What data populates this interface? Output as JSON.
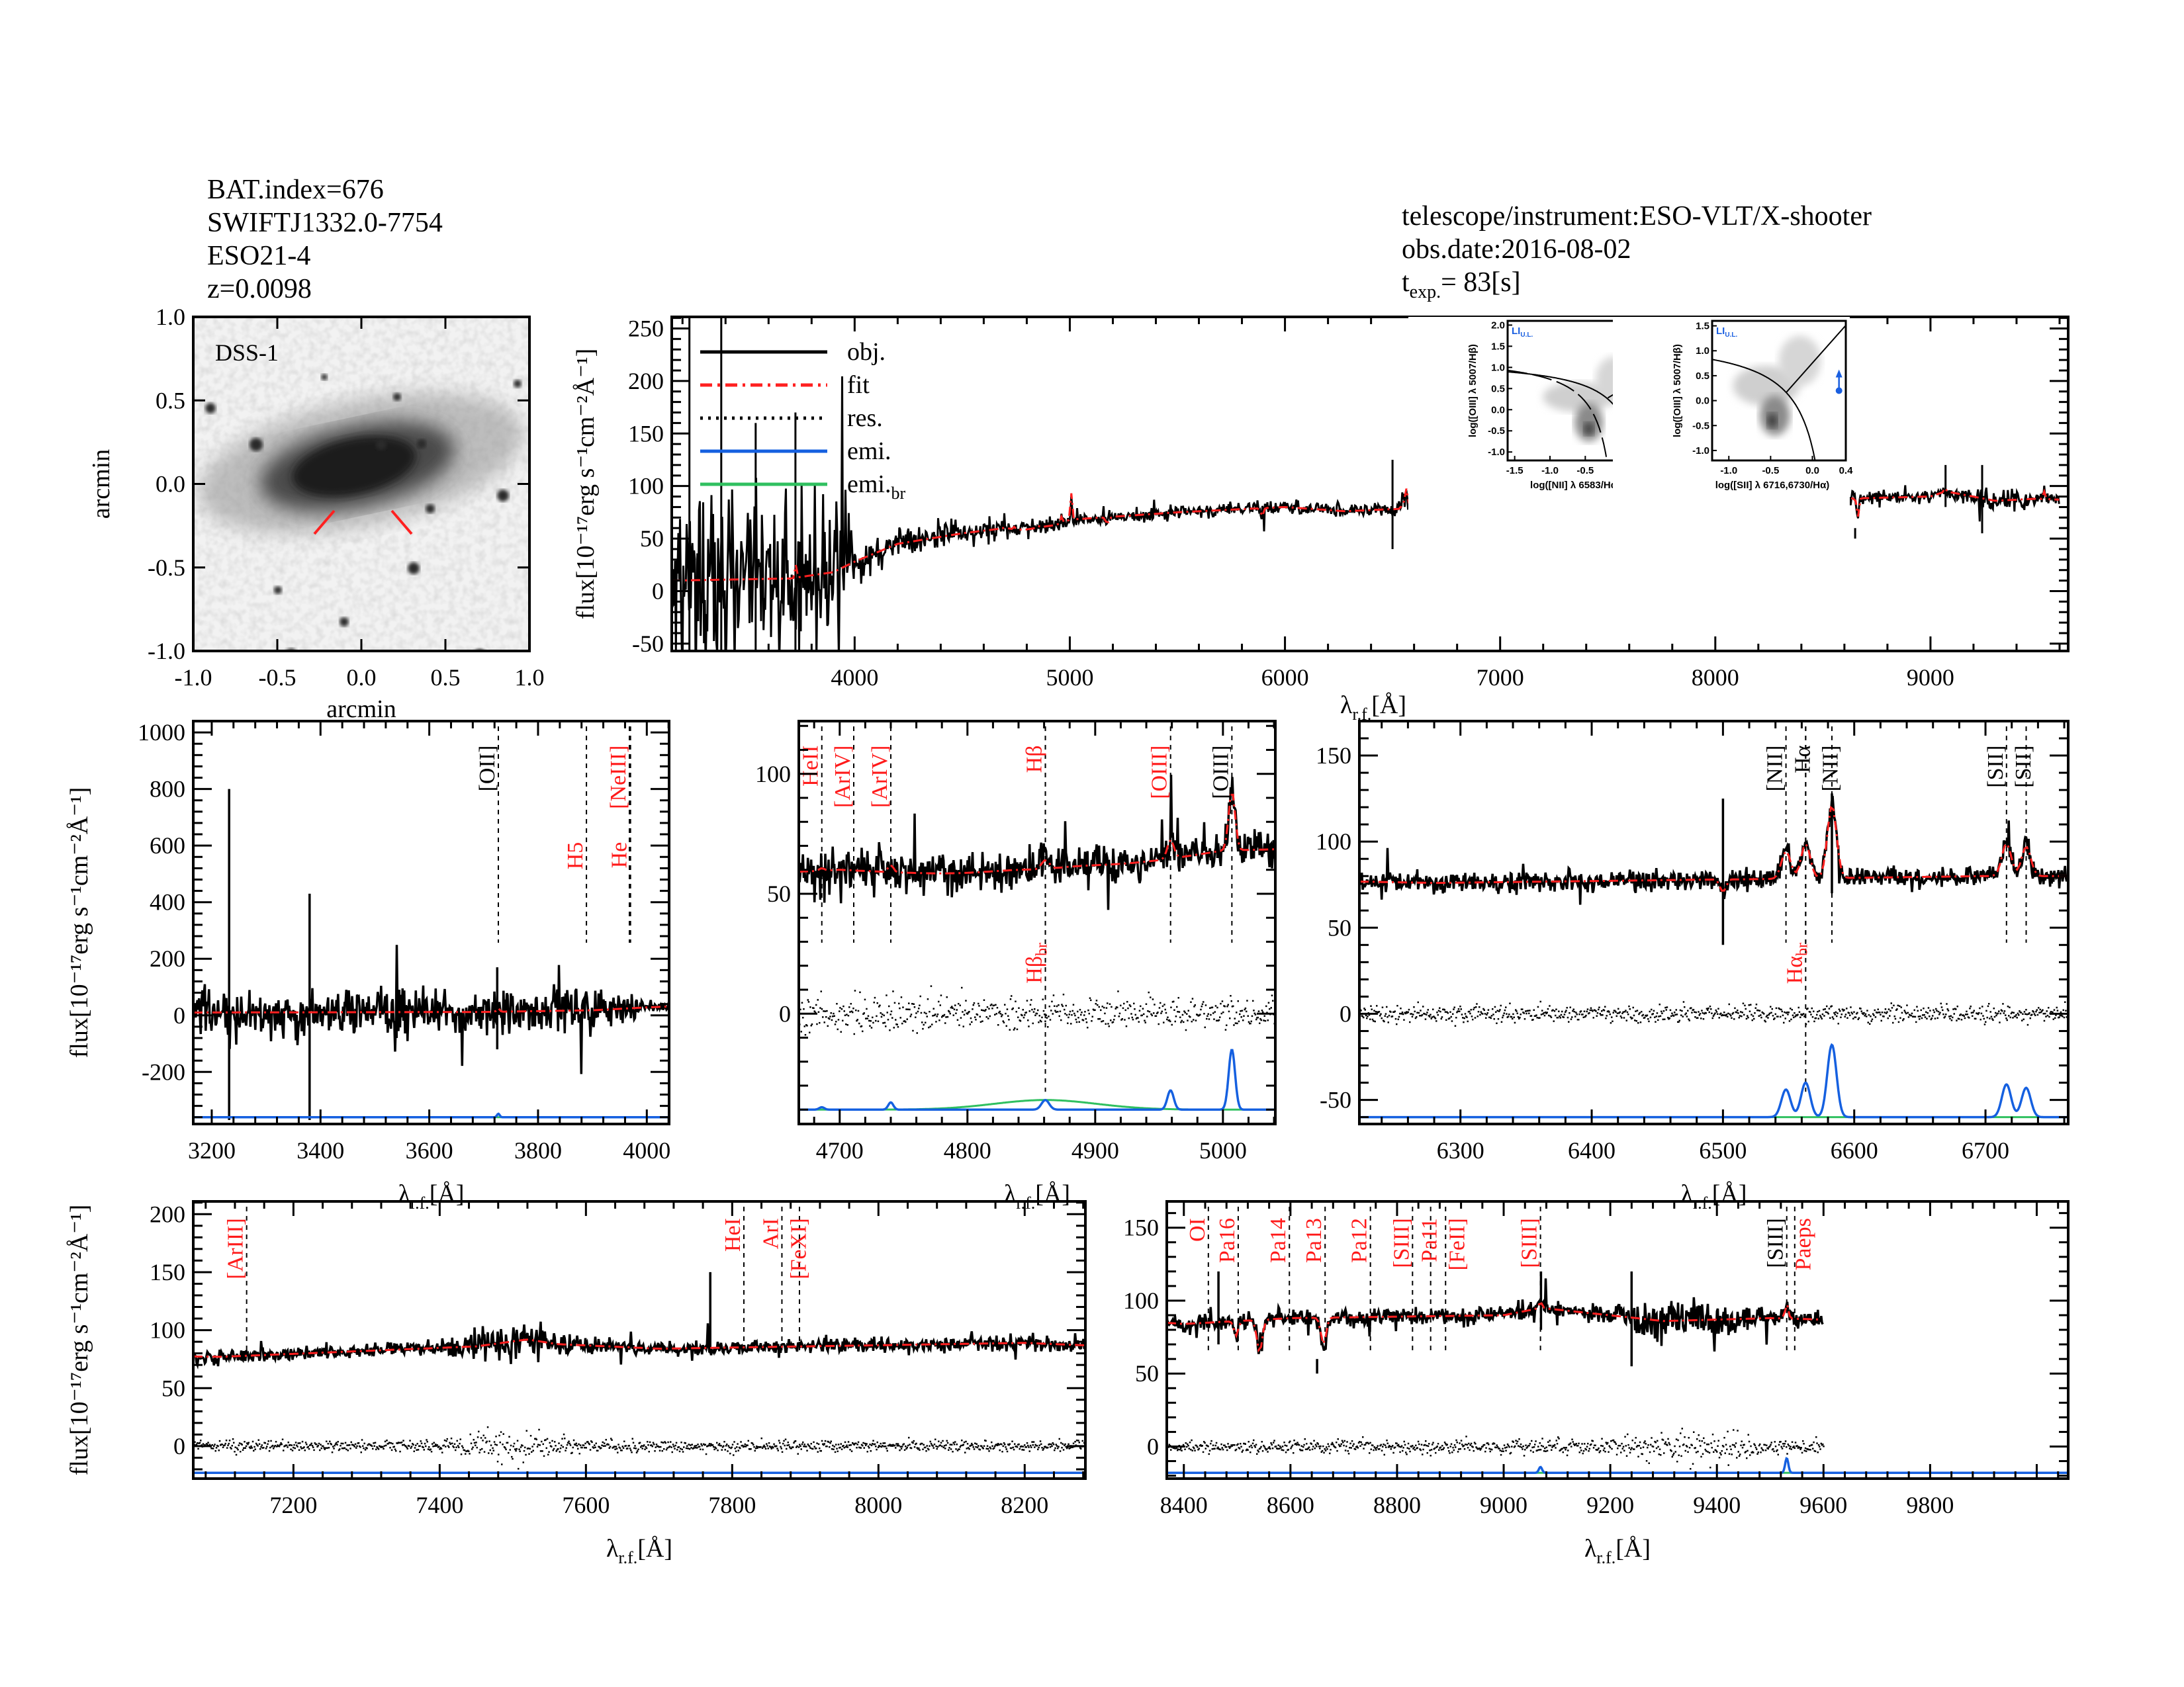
{
  "header": {
    "source_lines": [
      "BAT.index=676",
      "SWIFTJ1332.0-7754",
      "ESO21-4",
      "z=0.0098"
    ],
    "telescope": "telescope/instrument:ESO-VLT/X-shooter",
    "obs_date": "obs.date:2016-08-02",
    "texp_t": "t",
    "texp_sub": "exp.",
    "texp_value": "=   83[s]"
  },
  "colors": {
    "obj": "#000000",
    "fit": "#ff2020",
    "res": "#000000",
    "emi": "#1560e0",
    "emi_br": "#30c060",
    "line_label_red": "#ff1a1a",
    "bpt_point": "#1a5fe0"
  },
  "chart_data": {
    "type": "line",
    "xlabel": {
      "main": "λ",
      "sub": "r.f.",
      "unit": "[Å]"
    },
    "ylabel": "flux[10⁻¹⁷erg s⁻¹cm⁻²Å⁻¹]",
    "legend": {
      "placement": "top-left",
      "entries": [
        {
          "label": "obj.",
          "style": "solid",
          "color": "#000000"
        },
        {
          "label": "fit",
          "style": "dash-dot",
          "color": "#ff2020"
        },
        {
          "label": "res.",
          "style": "dotted",
          "color": "#000000"
        },
        {
          "label": "emi.",
          "style": "solid",
          "color": "#1560e0"
        },
        {
          "label": "emi.",
          "sub": "br",
          "style": "solid",
          "color": "#30c060"
        }
      ]
    },
    "spectrum": {
      "continuum": [
        [
          3150,
          10
        ],
        [
          3700,
          12
        ],
        [
          3900,
          18
        ],
        [
          4000,
          28
        ],
        [
          4200,
          45
        ],
        [
          4500,
          55
        ],
        [
          4700,
          60
        ],
        [
          4860,
          56
        ],
        [
          5000,
          68
        ],
        [
          5500,
          75
        ],
        [
          6000,
          80
        ],
        [
          6280,
          76
        ],
        [
          6495,
          78
        ],
        [
          6500,
          70
        ],
        [
          6505,
          78
        ],
        [
          6700,
          80
        ],
        [
          6760,
          80
        ],
        [
          7100,
          77
        ],
        [
          7450,
          86
        ],
        [
          7520,
          92
        ],
        [
          7560,
          88
        ],
        [
          7700,
          84
        ],
        [
          8000,
          87
        ],
        [
          8200,
          89
        ],
        [
          8400,
          84
        ],
        [
          8600,
          88
        ],
        [
          9000,
          90
        ],
        [
          9070,
          95
        ],
        [
          9300,
          86
        ],
        [
          9500,
          88
        ],
        [
          9600,
          87
        ]
      ],
      "absorption": [
        [
          5175,
          -6,
          8
        ],
        [
          5893,
          -8,
          6
        ],
        [
          8498,
          -10,
          4
        ],
        [
          8542,
          -22,
          5
        ],
        [
          8662,
          -18,
          5
        ]
      ],
      "emission": [
        {
          "name": "[OII]",
          "wavelength": 3727,
          "amp": 12,
          "sigma": 2.5
        },
        {
          "name": "HeII",
          "wavelength": 4686,
          "amp": 1,
          "sigma": 2
        },
        {
          "name": "[ArIV]",
          "wavelength": 4740,
          "amp": 3,
          "sigma": 2
        },
        {
          "name": "Hβ",
          "wavelength": 4861,
          "amp": 4,
          "sigma": 3
        },
        {
          "name": "[OIII]",
          "wavelength": 4959,
          "amp": 8,
          "sigma": 2.5
        },
        {
          "name": "[OIII]",
          "wavelength": 5007,
          "amp": 25,
          "sigma": 2.5
        },
        {
          "name": "Hβ_br",
          "wavelength": 4861,
          "amp": 4,
          "sigma": 40,
          "broad": true
        },
        {
          "name": "[NII]",
          "wavelength": 6548,
          "amp": 16,
          "sigma": 3.5
        },
        {
          "name": "Hα",
          "wavelength": 6563,
          "amp": 20,
          "sigma": 3.5
        },
        {
          "name": "[NII]",
          "wavelength": 6583,
          "amp": 42,
          "sigma": 3.5
        },
        {
          "name": "[SII]",
          "wavelength": 6716,
          "amp": 19,
          "sigma": 3.5
        },
        {
          "name": "[SII]",
          "wavelength": 6731,
          "amp": 17,
          "sigma": 3.5
        },
        {
          "name": "[SIII]",
          "wavelength": 9069,
          "amp": 4,
          "sigma": 3
        },
        {
          "name": "[SIII]",
          "wavelength": 9531,
          "amp": 10,
          "sigma": 3
        }
      ],
      "spikes": [
        [
          3232,
          800,
          -370
        ],
        [
          3380,
          430,
          -370
        ],
        [
          3540,
          160,
          -80
        ],
        [
          3725,
          170,
          -120
        ],
        [
          6500,
          125,
          40
        ],
        [
          6583,
          128,
          70
        ],
        [
          7770,
          150,
          80
        ],
        [
          8465,
          120,
          70
        ],
        [
          8650,
          60,
          50
        ],
        [
          9070,
          120,
          80
        ],
        [
          9240,
          120,
          55
        ]
      ],
      "noise": [
        [
          3150,
          40
        ],
        [
          3950,
          40
        ],
        [
          4000,
          8
        ],
        [
          4600,
          5
        ],
        [
          5200,
          3
        ],
        [
          7400,
          3
        ],
        [
          7500,
          9
        ],
        [
          7600,
          3
        ],
        [
          9200,
          3
        ],
        [
          9250,
          6
        ],
        [
          9450,
          6
        ],
        [
          9500,
          3
        ],
        [
          9600,
          3
        ]
      ],
      "end_wavelength": 9600
    },
    "panels": [
      {
        "id": "overview",
        "xlim": [
          3150,
          9640
        ],
        "ylim": [
          -57,
          261
        ],
        "xticks": [
          4000,
          5000,
          6000,
          7000,
          8000,
          9000
        ],
        "yticks": [
          -50,
          0,
          50,
          100,
          150,
          200,
          250
        ],
        "residuals": false,
        "emission_baseline": null,
        "lines": []
      },
      {
        "id": "blue",
        "xlim": [
          3166,
          4041
        ],
        "ylim": [
          -384,
          1040
        ],
        "xticks": [
          3200,
          3400,
          3600,
          3800,
          4000
        ],
        "yticks": [
          -200,
          0,
          200,
          400,
          600,
          800,
          1000
        ],
        "residuals": false,
        "emission_baseline": -360,
        "lines": [
          {
            "label": "[OII]",
            "wavelength": 3727,
            "color": "#000000"
          },
          {
            "label": "H5",
            "wavelength": 3889,
            "color": "#ff1a1a",
            "low": true
          },
          {
            "label": "[NeIII]",
            "wavelength": 3968,
            "color": "#ff1a1a"
          },
          {
            "label": "He",
            "wavelength": 3970,
            "color": "#ff1a1a",
            "low": true
          }
        ]
      },
      {
        "id": "hbeta",
        "xlim": [
          4668,
          5041
        ],
        "ylim": [
          -46,
          122
        ],
        "xticks": [
          4700,
          4800,
          4900,
          5000
        ],
        "yticks": [
          0,
          50,
          100
        ],
        "residuals": true,
        "emission_baseline": -40,
        "lines": [
          {
            "label": "HeII",
            "wavelength": 4686,
            "color": "#ff1a1a"
          },
          {
            "label": "[ArIV]",
            "wavelength": 4711,
            "color": "#ff1a1a"
          },
          {
            "label": "[ArIV]",
            "wavelength": 4740,
            "color": "#ff1a1a"
          },
          {
            "label": "Hβ",
            "wavelength": 4861,
            "color": "#ff1a1a"
          },
          {
            "label": "Hβ",
            "sub": "br",
            "wavelength": 4861,
            "color": "#ff1a1a",
            "broad": true
          },
          {
            "label": "[OIII]",
            "wavelength": 4959,
            "color": "#ff1a1a"
          },
          {
            "label": "[OIII]",
            "wavelength": 5007,
            "color": "#000000"
          }
        ]
      },
      {
        "id": "halpha",
        "xlim": [
          6223,
          6763
        ],
        "ylim": [
          -64,
          170
        ],
        "xticks": [
          6300,
          6400,
          6500,
          6600,
          6700
        ],
        "yticks": [
          -50,
          0,
          50,
          100,
          150
        ],
        "residuals": true,
        "emission_baseline": -60,
        "lines": [
          {
            "label": "[NII]",
            "wavelength": 6548,
            "color": "#000000"
          },
          {
            "label": "Hα",
            "wavelength": 6563,
            "color": "#000000"
          },
          {
            "label": "Hα",
            "sub": "br",
            "wavelength": 6563,
            "color": "#ff1a1a",
            "broad": true
          },
          {
            "label": "[NII]",
            "wavelength": 6583,
            "color": "#000000"
          },
          {
            "label": "[SII]",
            "wavelength": 6716,
            "color": "#000000"
          },
          {
            "label": "[SII]",
            "wavelength": 6731,
            "color": "#000000"
          }
        ]
      },
      {
        "id": "red1",
        "xlim": [
          7063,
          8283
        ],
        "ylim": [
          -28,
          211
        ],
        "xticks": [
          7200,
          7400,
          7600,
          7800,
          8000,
          8200
        ],
        "yticks": [
          0,
          50,
          100,
          150,
          200
        ],
        "residuals": true,
        "emission_baseline": -23,
        "lines": [
          {
            "label": "[ArIII]",
            "wavelength": 7136,
            "color": "#ff1a1a"
          },
          {
            "label": "HeI",
            "wavelength": 7816,
            "color": "#ff1a1a"
          },
          {
            "label": "ArI",
            "wavelength": 7868,
            "color": "#ff1a1a"
          },
          {
            "label": "[FeXI]",
            "wavelength": 7892,
            "color": "#ff1a1a"
          }
        ]
      },
      {
        "id": "red2",
        "xlim": [
          8368,
          10059
        ],
        "ylim": [
          -22,
          168
        ],
        "xticks": [
          8400,
          8600,
          8800,
          9000,
          9200,
          9400,
          9600,
          9800
        ],
        "yticks": [
          0,
          50,
          100,
          150
        ],
        "residuals": true,
        "emission_baseline": -18,
        "lines": [
          {
            "label": "OI",
            "wavelength": 8446,
            "color": "#ff1a1a"
          },
          {
            "label": "Pa16",
            "wavelength": 8502,
            "color": "#ff1a1a"
          },
          {
            "label": "Pa14",
            "wavelength": 8598,
            "color": "#ff1a1a"
          },
          {
            "label": "Pa13",
            "wavelength": 8665,
            "color": "#ff1a1a"
          },
          {
            "label": "Pa12",
            "wavelength": 8750,
            "color": "#ff1a1a"
          },
          {
            "label": "[SIII]",
            "wavelength": 8829,
            "color": "#ff1a1a"
          },
          {
            "label": "Pa11",
            "wavelength": 8863,
            "color": "#ff1a1a"
          },
          {
            "label": "[FeII]",
            "wavelength": 8891,
            "color": "#ff1a1a"
          },
          {
            "label": "[SIII]",
            "wavelength": 9069,
            "color": "#ff1a1a"
          },
          {
            "label": "[SIII]",
            "wavelength": 9531,
            "color": "#000000"
          },
          {
            "label": "Paeps",
            "wavelength": 9546,
            "color": "#ff1a1a"
          }
        ]
      }
    ],
    "image": {
      "label": "DSS-1",
      "xlabel": "arcmin",
      "ylabel": "arcmin",
      "xlim": [
        -1.0,
        1.0
      ],
      "ylim": [
        -1.0,
        1.0
      ],
      "ticks": [
        "-1.0",
        "-0.5",
        "0.0",
        "0.5",
        "1.0"
      ]
    },
    "bpt": [
      {
        "id": "nii",
        "xlabel": "log([NII] λ 6583/Hα)",
        "ylabel": "log([OIII] λ 5007/Hβ)",
        "xlim": [
          -1.6,
          0.5
        ],
        "ylim": [
          -1.2,
          2.1
        ],
        "xticks": [
          "-1.5",
          "-1.0",
          "-0.5",
          "0.0",
          "0.5"
        ],
        "yticks": [
          "-1.0",
          "-0.5",
          "0.0",
          "0.5",
          "1.0",
          "1.5",
          "2.0"
        ],
        "class": "LI",
        "class_sub": "U.L.",
        "point": [
          0.47,
          0.2
        ],
        "upper_limit": true
      },
      {
        "id": "sii",
        "xlabel": "log([SII] λ 6716,6730/Hα)",
        "ylabel": "log([OIII] λ 5007/Hβ)",
        "xlim": [
          -1.2,
          0.4
        ],
        "ylim": [
          -1.2,
          1.6
        ],
        "xticks": [
          "-1.0",
          "-0.5",
          "0.0",
          "0.4"
        ],
        "yticks": [
          "-1.0",
          "-0.5",
          "0.0",
          "0.5",
          "1.0",
          "1.5"
        ],
        "class": "LI",
        "class_sub": "U.L.",
        "point": [
          0.35,
          0.2
        ],
        "upper_limit": true
      }
    ]
  }
}
